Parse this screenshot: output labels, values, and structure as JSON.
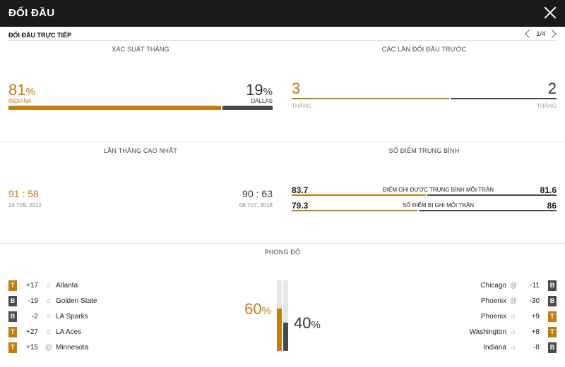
{
  "header": {
    "title": "ĐỐI ĐẦU",
    "close_icon": "close-icon"
  },
  "subheader": {
    "title": "ĐỐI ĐẦU TRỰC TIẾP",
    "pager": "1/4"
  },
  "colors": {
    "accent": "#c47c0c",
    "dark": "#4a4a4a",
    "topbar": "#1a1a1a"
  },
  "win_prob": {
    "title": "XÁC SUẤT THẮNG",
    "home_value": "81",
    "home_pct": "%",
    "home_name": "INDIANA",
    "away_value": "19",
    "away_pct": "%",
    "away_name": "DALLAS",
    "home_share": 0.81
  },
  "previous": {
    "title": "CÁC LẦN ĐỐI ĐẦU TRƯỚC",
    "home_wins": "3",
    "home_label": "THẮNG",
    "away_wins": "2",
    "away_label": "THẮNG",
    "home_share": 0.6
  },
  "biggest_win": {
    "title": "LẦN THẮNG CAO NHẤT",
    "home_score": "91 : 58",
    "home_date": "24 T09, 2012",
    "away_score": "90 : 63",
    "away_date": "06 T07, 2018"
  },
  "avg_points": {
    "title": "SỐ ĐIỂM TRUNG BÌNH",
    "rows": [
      {
        "label": "ĐIỂM GHI ĐƯỢC TRUNG BÌNH MỖI TRẬN",
        "home": "83.7",
        "away": "81.6"
      },
      {
        "label": "SỐ ĐIỂM BỊ GHI MỖI TRẬN",
        "home": "79.3",
        "away": "86"
      }
    ]
  },
  "form": {
    "title": "PHONG ĐỘ",
    "home_pct": "60",
    "away_pct": "40",
    "pct_sign": "%",
    "home_share": 0.6,
    "away_share": 0.4,
    "home_games": [
      {
        "result": "T",
        "diff": "+17",
        "venue": "home",
        "opponent": "Atlanta"
      },
      {
        "result": "B",
        "diff": "-19",
        "venue": "home",
        "opponent": "Golden State"
      },
      {
        "result": "B",
        "diff": "-2",
        "venue": "home",
        "opponent": "LA Sparks"
      },
      {
        "result": "T",
        "diff": "+27",
        "venue": "home",
        "opponent": "LA Aces"
      },
      {
        "result": "T",
        "diff": "+15",
        "venue": "away",
        "opponent": "Minnesota"
      }
    ],
    "away_games": [
      {
        "result": "B",
        "diff": "-11",
        "venue": "away",
        "opponent": "Chicago"
      },
      {
        "result": "B",
        "diff": "-30",
        "venue": "away",
        "opponent": "Phoenix"
      },
      {
        "result": "T",
        "diff": "+9",
        "venue": "home",
        "opponent": "Phoenix"
      },
      {
        "result": "T",
        "diff": "+8",
        "venue": "home",
        "opponent": "Washington"
      },
      {
        "result": "B",
        "diff": "-8",
        "venue": "home",
        "opponent": "Indiana"
      }
    ]
  }
}
